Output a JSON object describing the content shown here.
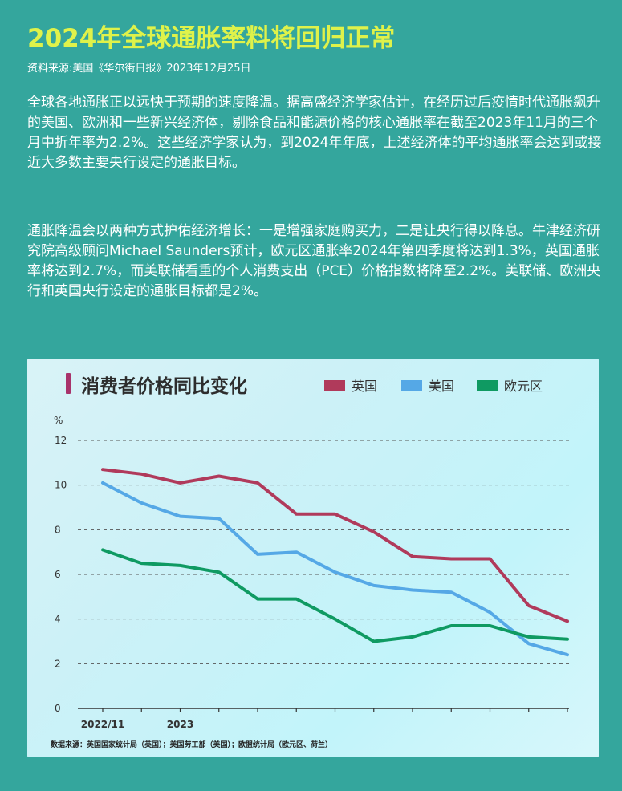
{
  "header": {
    "title": "2024年全球通胀率料将回归正常",
    "source": "资料来源:美国《华尔街日报》2023年12月25日"
  },
  "body": {
    "paragraph_1": "全球各地通胀正以远快于预期的速度降温。据高盛经济学家估计，在经历过后疫情时代通胀飙升的美国、欧洲和一些新兴经济体，剔除食品和能源价格的核心通胀率在截至2023年11月的三个月中折年率为2.2%。这些经济学家认为，到2024年年底，上述经济体的平均通胀率会达到或接近大多数主要央行设定的通胀目标。",
    "paragraph_2": "通胀降温会以两种方式护佑经济增长：一是增强家庭购买力，二是让央行得以降息。牛津经济研究院高级顾问Michael Saunders预计，欧元区通胀率2024年第四季度将达到1.3%，英国通胀率将达到2.7%，而美联储看重的个人消费支出（PCE）价格指数将降至2.2%。美联储、欧洲央行和英国央行设定的通胀目标都是2%。"
  },
  "chart_data": {
    "type": "line",
    "title": "消费者价格同比变化",
    "ylabel": "%",
    "ylim": [
      0,
      12
    ],
    "yticks": [
      0,
      2,
      4,
      6,
      8,
      10,
      12
    ],
    "x": [
      "2022/11",
      "2022/12",
      "2023/01",
      "2023/02",
      "2023/03",
      "2023/04",
      "2023/05",
      "2023/06",
      "2023/07",
      "2023/08",
      "2023/09",
      "2023/10",
      "2023/11"
    ],
    "x_tick_labels": [
      "2022/11",
      "",
      "2023",
      "",
      "",
      "",
      "",
      "",
      "",
      "",
      "",
      "",
      ""
    ],
    "grid": "horizontal dashed",
    "legend_placement": "top",
    "series": [
      {
        "name": "英国",
        "color": "#b03a5b",
        "values": [
          10.7,
          10.5,
          10.1,
          10.4,
          10.1,
          8.7,
          8.7,
          7.9,
          6.8,
          6.7,
          6.7,
          4.6,
          3.9
        ]
      },
      {
        "name": "美国",
        "color": "#55a8e6",
        "values": [
          10.1,
          9.2,
          8.6,
          8.5,
          6.9,
          7.0,
          6.1,
          5.5,
          5.3,
          5.2,
          4.3,
          2.9,
          2.4
        ]
      },
      {
        "name": "欧元区",
        "color": "#0f9a62",
        "values": [
          7.1,
          6.5,
          6.4,
          6.1,
          4.9,
          4.9,
          4.0,
          3.0,
          3.2,
          3.7,
          3.7,
          3.2,
          3.1
        ]
      }
    ],
    "data_source": "数据来源：英国国家统计局（英国）；美国劳工部（美国）；欧盟统计局（欧元区、荷兰）"
  }
}
